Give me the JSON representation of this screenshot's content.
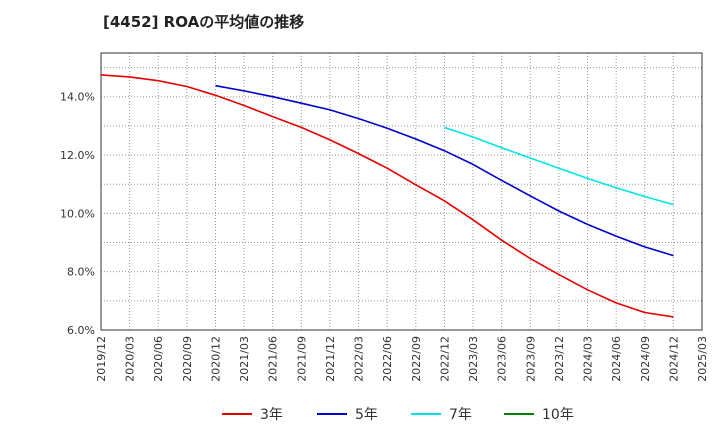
{
  "chart_data": {
    "type": "line",
    "title": "[4452]  ROAの平均値の推移",
    "xlabel": "",
    "ylabel": "",
    "x_ticks": [
      "2019/12",
      "2020/03",
      "2020/06",
      "2020/09",
      "2020/12",
      "2021/03",
      "2021/06",
      "2021/09",
      "2021/12",
      "2022/03",
      "2022/06",
      "2022/09",
      "2022/12",
      "2023/03",
      "2023/06",
      "2023/09",
      "2023/12",
      "2024/03",
      "2024/06",
      "2024/09",
      "2024/12",
      "2025/03"
    ],
    "y_ticks": [
      "6.0%",
      "8.0%",
      "10.0%",
      "12.0%",
      "14.0%"
    ],
    "y_tick_values": [
      6,
      8,
      10,
      12,
      14
    ],
    "ylim": [
      6.0,
      15.5
    ],
    "grid": true,
    "legend_position": "bottom",
    "series": [
      {
        "name": "3年",
        "color": "#e60000",
        "x": [
          "2019/12",
          "2020/03",
          "2020/06",
          "2020/09",
          "2020/12",
          "2021/03",
          "2021/06",
          "2021/09",
          "2021/12",
          "2022/03",
          "2022/06",
          "2022/09",
          "2022/12",
          "2023/03",
          "2023/06",
          "2023/09",
          "2023/12",
          "2024/03",
          "2024/06",
          "2024/09",
          "2024/12"
        ],
        "values": [
          14.75,
          14.68,
          14.55,
          14.35,
          14.05,
          13.7,
          13.32,
          12.95,
          12.52,
          12.05,
          11.55,
          10.98,
          10.43,
          9.78,
          9.08,
          8.45,
          7.9,
          7.38,
          6.93,
          6.6,
          6.45
        ]
      },
      {
        "name": "5年",
        "color": "#0000cc",
        "x": [
          "2020/12",
          "2021/03",
          "2021/06",
          "2021/09",
          "2021/12",
          "2022/03",
          "2022/06",
          "2022/09",
          "2022/12",
          "2023/03",
          "2023/06",
          "2023/09",
          "2023/12",
          "2024/03",
          "2024/06",
          "2024/09",
          "2024/12"
        ],
        "values": [
          14.38,
          14.2,
          14.0,
          13.78,
          13.55,
          13.25,
          12.92,
          12.55,
          12.15,
          11.68,
          11.13,
          10.6,
          10.08,
          9.62,
          9.22,
          8.85,
          8.55
        ]
      },
      {
        "name": "7年",
        "color": "#00e5e5",
        "x": [
          "2022/12",
          "2023/03",
          "2023/06",
          "2023/09",
          "2023/12",
          "2024/03",
          "2024/06",
          "2024/09",
          "2024/12"
        ],
        "values": [
          12.95,
          12.62,
          12.25,
          11.9,
          11.55,
          11.2,
          10.88,
          10.58,
          10.3
        ]
      },
      {
        "name": "10年",
        "color": "#008000",
        "x": [],
        "values": []
      }
    ]
  }
}
